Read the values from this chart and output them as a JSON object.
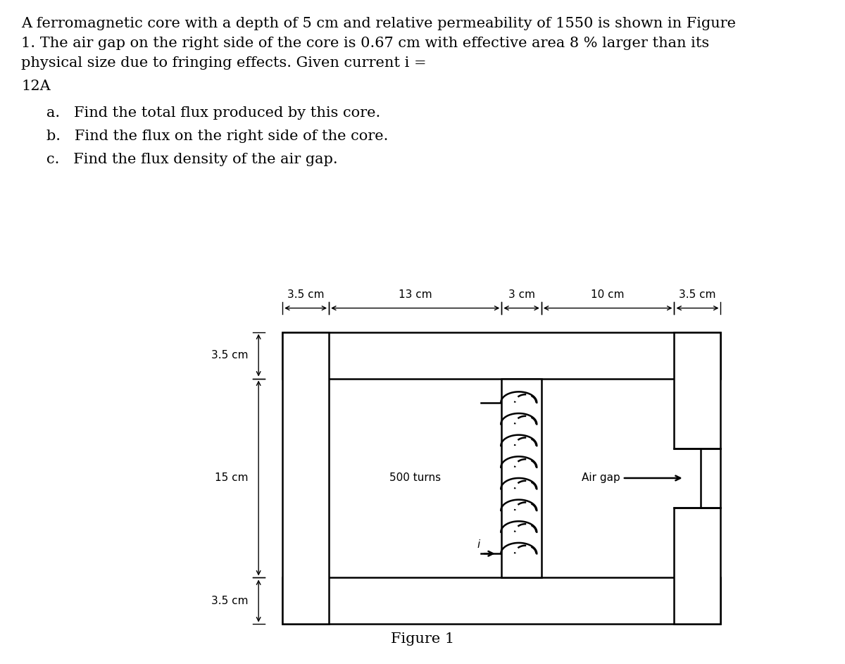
{
  "figure_caption": "Figure 1",
  "bg_color": "#ffffff",
  "line_color": "#000000",
  "paragraph1": "A ferromagnetic core with a depth of 5 cm and relative permeability of 1550 is shown in Figure",
  "paragraph2": "1. The air gap on the right side of the core is 0.67 cm with effective area 8 % larger than its",
  "paragraph3": "physical size due to fringing effects. Given current i =",
  "paragraph4": "12A",
  "item_a": "a.   Find the total flux produced by this core.",
  "item_b": "b.   Find the flux on the right side of the core.",
  "item_c": "c.   Find the flux density of the air gap.",
  "dim_top_left": "3.5 cm",
  "dim_top_mid": "13 cm",
  "dim_top_ctr": "3 cm",
  "dim_top_r1": "10 cm",
  "dim_top_r2": "3.5 cm",
  "dim_left_top": "3.5 cm",
  "dim_left_mid": "15 cm",
  "dim_left_bot": "3.5 cm",
  "coil_label": "500 turns",
  "current_label": "i",
  "airgap_label": "Air gap",
  "text_fontsize": 15,
  "item_fontsize": 15,
  "caption_fontsize": 15,
  "diagram_fontsize": 11
}
